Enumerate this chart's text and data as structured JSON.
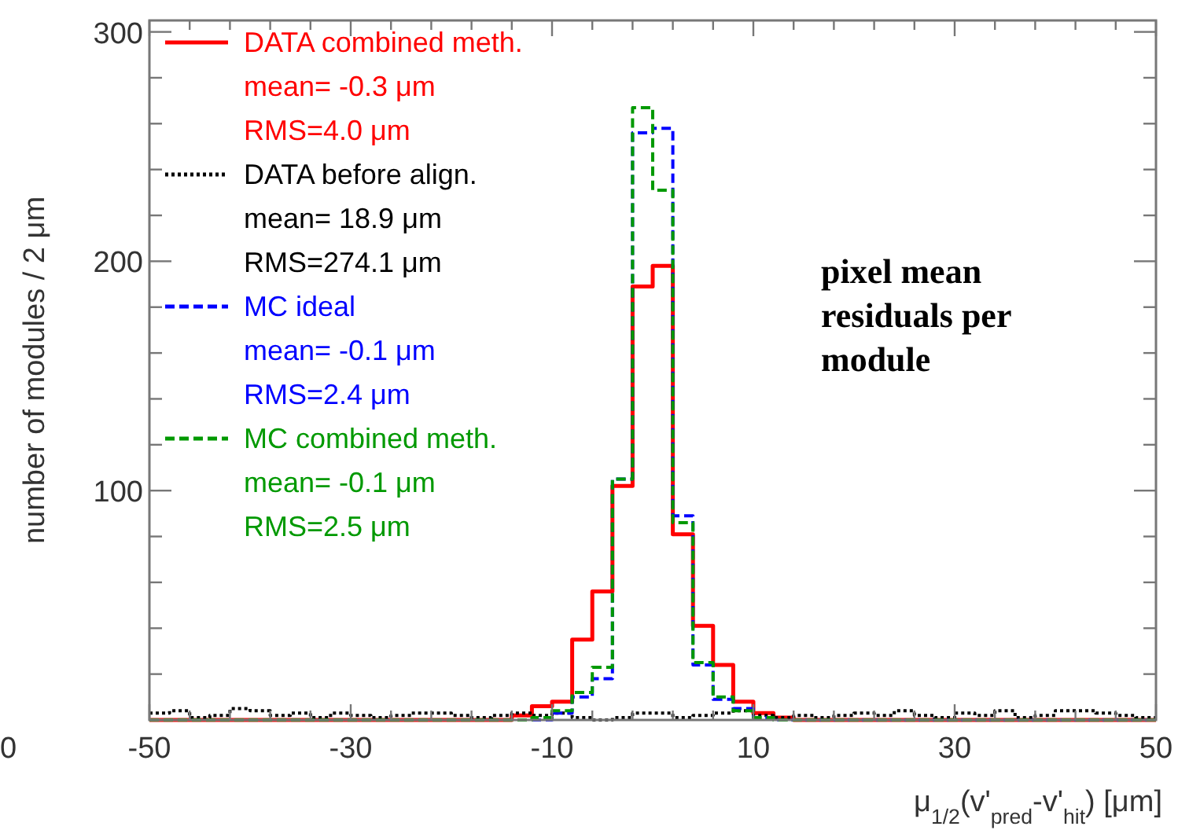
{
  "chart_data": {
    "type": "histogram",
    "xlabel": "μ$_{1/2}$(v'$_{pred}$-v'$_{hit}$) [μm]",
    "ylabel": "number of modules / 2 μm",
    "bins": [
      -50,
      -48,
      -46,
      -44,
      -42,
      -40,
      -38,
      -36,
      -34,
      -32,
      -30,
      -28,
      -26,
      -24,
      -22,
      -20,
      -18,
      -16,
      -14,
      -12,
      -10,
      -8,
      -6,
      -4,
      -2,
      0,
      2,
      4,
      6,
      8,
      10,
      12,
      14,
      16,
      18,
      20,
      22,
      24,
      26,
      28,
      30,
      32,
      34,
      36,
      38,
      40,
      42,
      44,
      46,
      48,
      50
    ],
    "series": [
      {
        "name": "DATA combined meth.\nmean= -0.3 μm\nRMS=4.0 μm",
        "color": "#ff0000",
        "line_style": "solid",
        "values": [
          0,
          0,
          0,
          0,
          0,
          0,
          0,
          0,
          0,
          0,
          0,
          0,
          0,
          0,
          0,
          0,
          0,
          0,
          2,
          6,
          8,
          35,
          56,
          102,
          189,
          198,
          81,
          41,
          24,
          8,
          3,
          1,
          0,
          0,
          0,
          0,
          0,
          0,
          0,
          0,
          0,
          0,
          0,
          0,
          0,
          0,
          0,
          0,
          0,
          0
        ]
      },
      {
        "name": "DATA before align.\nmean= 18.9 μm\nRMS=274.1 μm",
        "color": "#000000",
        "line_style": "dotted",
        "values": [
          3,
          4,
          1,
          2,
          5,
          4,
          2,
          3,
          1,
          3,
          2,
          1,
          2,
          3,
          3,
          2,
          1,
          2,
          3,
          2,
          3,
          1,
          0,
          1,
          3,
          3,
          1,
          2,
          3,
          4,
          2,
          1,
          2,
          1,
          2,
          3,
          2,
          4,
          2,
          1,
          3,
          2,
          4,
          1,
          2,
          4,
          4,
          3,
          2,
          1
        ]
      },
      {
        "name": "MC ideal\nmean= -0.1 μm\nRMS=2.4 μm",
        "color": "#0000ff",
        "line_style": "dashed",
        "values": [
          0,
          0,
          0,
          0,
          0,
          0,
          0,
          0,
          0,
          0,
          0,
          0,
          0,
          0,
          0,
          0,
          0,
          0,
          0,
          0,
          3,
          10,
          18,
          105,
          256,
          258,
          89,
          24,
          9,
          5,
          1,
          0,
          0,
          0,
          0,
          0,
          0,
          0,
          0,
          0,
          0,
          0,
          0,
          0,
          0,
          0,
          0,
          0,
          0,
          0
        ]
      },
      {
        "name": "MC combined meth.\nmean= -0.1 μm\nRMS=2.5 μm",
        "color": "#009900",
        "line_style": "dashed",
        "values": [
          0,
          0,
          0,
          0,
          0,
          0,
          0,
          0,
          0,
          0,
          0,
          0,
          0,
          0,
          0,
          0,
          0,
          0,
          0,
          1,
          4,
          12,
          23,
          105,
          267,
          231,
          86,
          25,
          10,
          4,
          1,
          0,
          0,
          0,
          0,
          0,
          0,
          0,
          0,
          0,
          0,
          0,
          0,
          0,
          0,
          0,
          0,
          0,
          0,
          0
        ]
      }
    ],
    "xlim": [
      -50,
      50
    ],
    "xticks": [
      -50,
      {
        "value": -46,
        "label": null
      },
      {
        "value": -42,
        "label": null
      },
      {
        "value": -38,
        "label": null
      },
      {
        "value": -34,
        "label": null
      },
      -30,
      {
        "value": -26,
        "label": null
      },
      {
        "value": -22,
        "label": null
      },
      {
        "value": -18,
        "label": null
      },
      {
        "value": -14,
        "label": null
      },
      -10,
      {
        "value": -6,
        "label": null
      },
      {
        "value": -2,
        "label": null
      },
      {
        "value": 2,
        "label": null
      },
      {
        "value": 6,
        "label": null
      },
      10,
      {
        "value": 14,
        "label": null
      },
      {
        "value": 18,
        "label": null
      },
      {
        "value": 22,
        "label": null
      },
      {
        "value": 26,
        "label": null
      },
      30,
      {
        "value": 34,
        "label": null
      },
      {
        "value": 38,
        "label": null
      },
      {
        "value": 42,
        "label": null
      },
      {
        "value": 46,
        "label": null
      },
      50
    ],
    "ylim": [
      0,
      305
    ],
    "yticks": [
      {
        "value": 0,
        "label": null
      },
      {
        "value": 20,
        "label": null
      },
      {
        "value": 40,
        "label": null
      },
      {
        "value": 60,
        "label": null
      },
      {
        "value": 80,
        "label": null
      },
      100,
      {
        "value": 120,
        "label": null
      },
      {
        "value": 140,
        "label": null
      },
      {
        "value": 160,
        "label": null
      },
      {
        "value": 180,
        "label": null
      },
      200,
      {
        "value": 220,
        "label": null
      },
      {
        "value": 240,
        "label": null
      },
      {
        "value": 260,
        "label": null
      },
      {
        "value": 280,
        "label": null
      },
      300
    ],
    "legend": "top left",
    "annotations": [
      "pixel  mean\nresiduals per\nmodule",
      "0"
    ]
  }
}
